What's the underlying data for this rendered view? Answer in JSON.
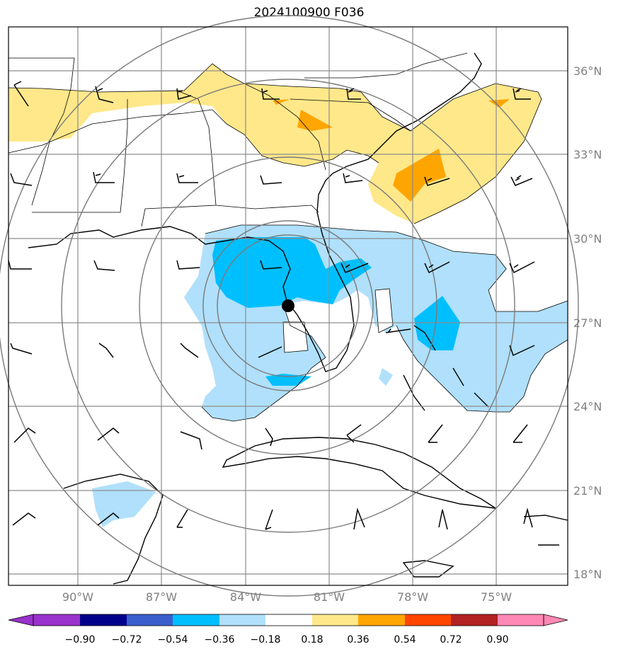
{
  "title": "2024100900 F036",
  "lat_labels": [
    "36°N",
    "33°N",
    "30°N",
    "27°N",
    "24°N",
    "21°N",
    "18°N"
  ],
  "lon_labels": [
    "90°W",
    "87°W",
    "84°W",
    "81°W",
    "78°W",
    "75°W"
  ],
  "colorbar": {
    "ticks": [
      "−0.90",
      "−0.72",
      "−0.54",
      "−0.36",
      "−0.18",
      "0.18",
      "0.36",
      "0.54",
      "0.72",
      "0.90"
    ],
    "colors": [
      "#9932cc",
      "#00008b",
      "#3a5fcd",
      "#00bfff",
      "#b0e0fb",
      "#ffffff",
      "#ffe88a",
      "#ffa500",
      "#ff4500",
      "#b22222",
      "#ff88b4"
    ]
  },
  "storm_center": {
    "lat": 27.6,
    "lon": -82.6
  },
  "colors": {
    "grid": "#8c8c8c",
    "light_blue": "#b0e0fb",
    "blue": "#00bfff",
    "light_yellow": "#ffe88a",
    "orange": "#ffa500"
  }
}
